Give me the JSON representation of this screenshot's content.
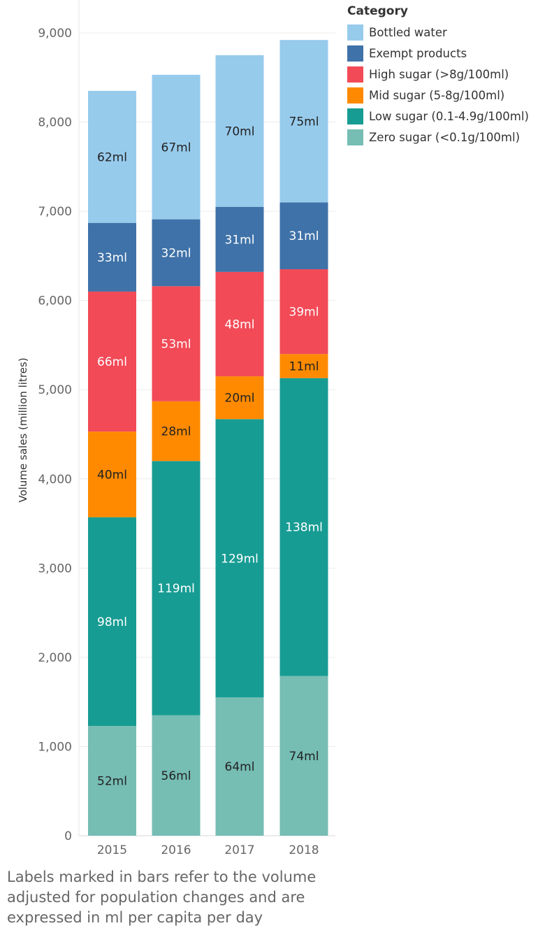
{
  "chart_data": {
    "type": "bar",
    "stacked": true,
    "categories": [
      "2015",
      "2016",
      "2017",
      "2018"
    ],
    "ylabel": "Volume sales (million litres)",
    "xlabel": "",
    "ylim": [
      0,
      9000
    ],
    "yticks": [
      "0",
      "1,000",
      "2,000",
      "3,000",
      "4,000",
      "5,000",
      "6,000",
      "7,000",
      "8,000",
      "9,000"
    ],
    "grid": true,
    "legend_title": "Category",
    "legend_position": "top-right",
    "series": [
      {
        "name": "Zero sugar (<0.1g/100ml)",
        "color": "#76BDB4",
        "label_color": "#222222",
        "values": [
          1230,
          1350,
          1550,
          1790
        ],
        "labels": [
          "52ml",
          "56ml",
          "64ml",
          "74ml"
        ]
      },
      {
        "name": "Low sugar (0.1-4.9g/100ml)",
        "color": "#179C93",
        "label_color": "#ffffff",
        "values": [
          2340,
          2850,
          3120,
          3340
        ],
        "labels": [
          "98ml",
          "119ml",
          "129ml",
          "138ml"
        ]
      },
      {
        "name": "Mid sugar (5-8g/100ml)",
        "color": "#FF8A00",
        "label_color": "#222222",
        "values": [
          960,
          670,
          480,
          270
        ],
        "labels": [
          "40ml",
          "28ml",
          "20ml",
          "11ml"
        ]
      },
      {
        "name": "High sugar (>8g/100ml)",
        "color": "#F24A57",
        "label_color": "#ffffff",
        "values": [
          1570,
          1290,
          1170,
          950
        ],
        "labels": [
          "66ml",
          "53ml",
          "48ml",
          "39ml"
        ]
      },
      {
        "name": "Exempt products",
        "color": "#3F72A8",
        "label_color": "#ffffff",
        "values": [
          770,
          750,
          730,
          750
        ],
        "labels": [
          "33ml",
          "32ml",
          "31ml",
          "31ml"
        ]
      },
      {
        "name": "Bottled water",
        "color": "#97CBEC",
        "label_color": "#222222",
        "values": [
          1480,
          1620,
          1700,
          1820
        ],
        "labels": [
          "62ml",
          "67ml",
          "70ml",
          "75ml"
        ]
      }
    ]
  },
  "footnote": "Labels marked in bars refer to the volume adjusted for population changes and are expressed in ml per capita per day"
}
